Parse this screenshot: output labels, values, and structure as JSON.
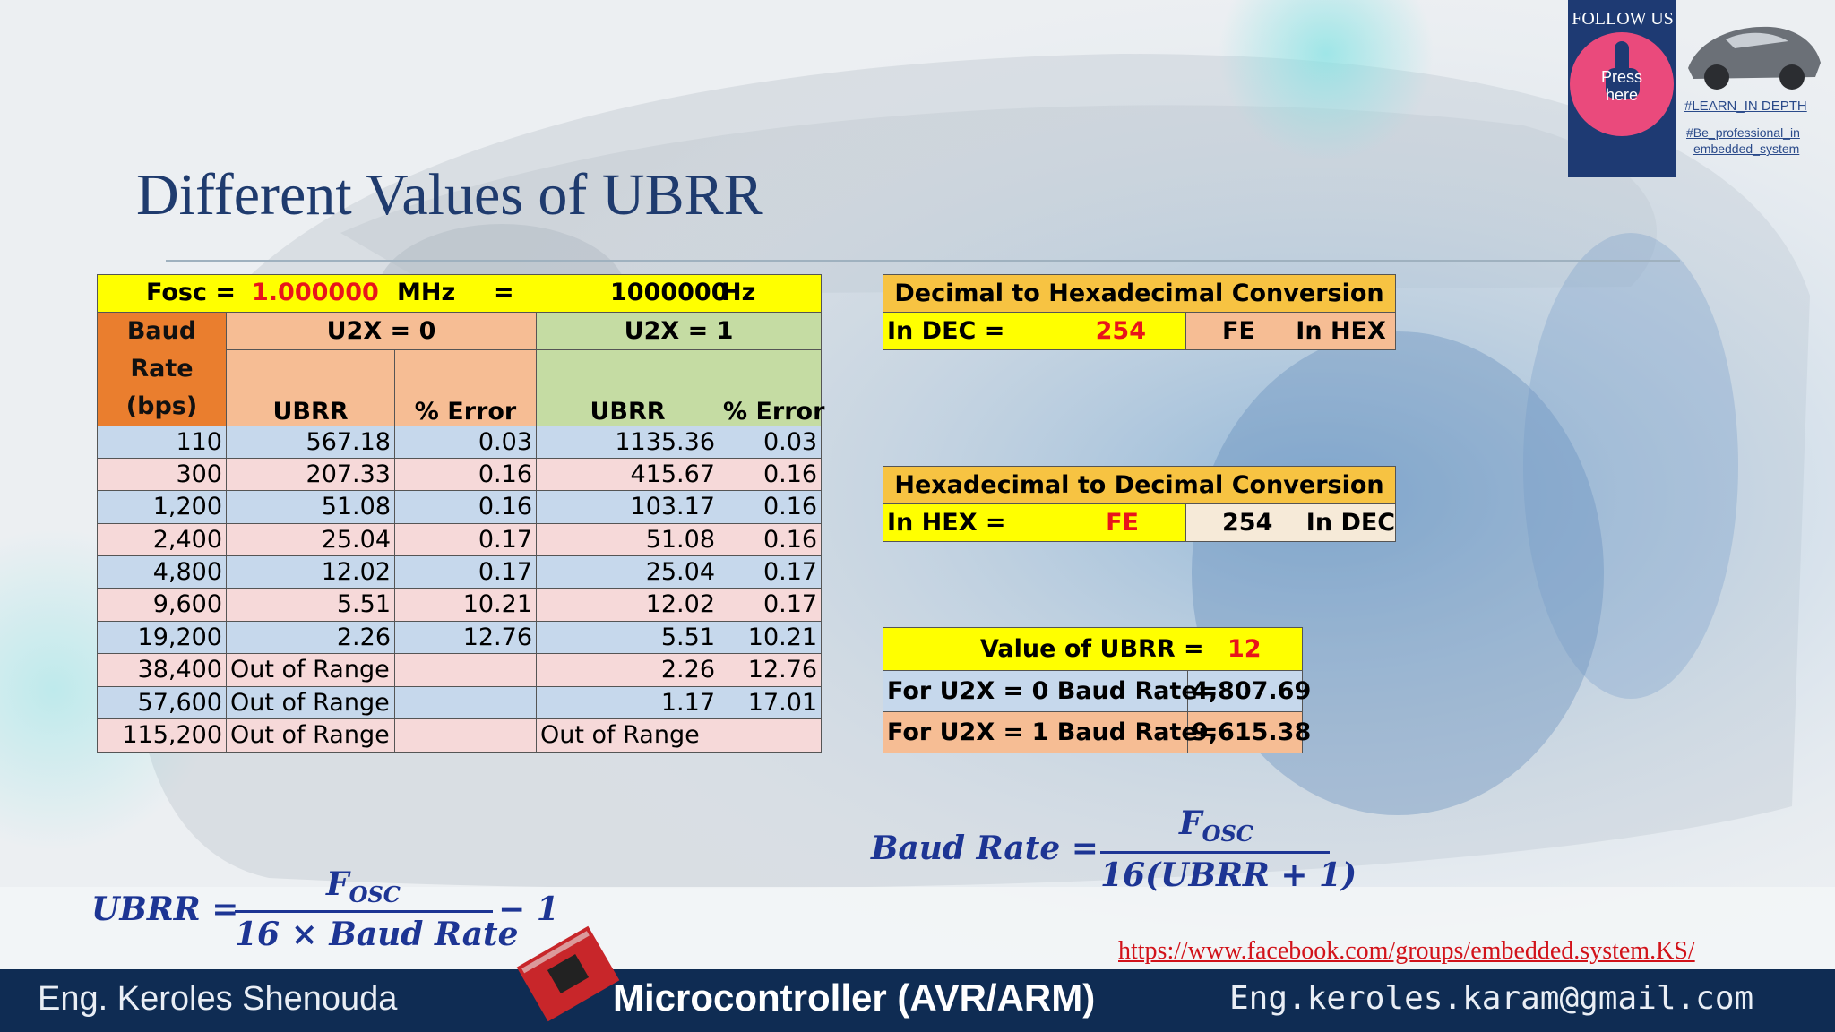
{
  "slide": {
    "title": "Different Values of UBRR"
  },
  "fosc": {
    "label": "Fosc =",
    "value": "1.000000",
    "unit_mhz": "MHz",
    "eq": "=",
    "hz_value": "1000000",
    "unit_hz": "Hz"
  },
  "table_headers": {
    "baud": "Baud Rate (bps)",
    "u2x0": "U2X = 0",
    "u2x1": "U2X = 1",
    "ubrr": "UBRR",
    "error": "% Error"
  },
  "rows": [
    {
      "baud": "110",
      "ubrr0": "567.18",
      "err0": "0.03",
      "ubrr1": "1135.36",
      "err1": "0.03"
    },
    {
      "baud": "300",
      "ubrr0": "207.33",
      "err0": "0.16",
      "ubrr1": "415.67",
      "err1": "0.16"
    },
    {
      "baud": "1,200",
      "ubrr0": "51.08",
      "err0": "0.16",
      "ubrr1": "103.17",
      "err1": "0.16"
    },
    {
      "baud": "2,400",
      "ubrr0": "25.04",
      "err0": "0.17",
      "ubrr1": "51.08",
      "err1": "0.16"
    },
    {
      "baud": "4,800",
      "ubrr0": "12.02",
      "err0": "0.17",
      "ubrr1": "25.04",
      "err1": "0.17"
    },
    {
      "baud": "9,600",
      "ubrr0": "5.51",
      "err0": "10.21",
      "ubrr1": "12.02",
      "err1": "0.17"
    },
    {
      "baud": "19,200",
      "ubrr0": "2.26",
      "err0": "12.76",
      "ubrr1": "5.51",
      "err1": "10.21"
    },
    {
      "baud": "38,400",
      "ubrr0": "Out of Range",
      "err0": "",
      "ubrr1": "2.26",
      "err1": "12.76"
    },
    {
      "baud": "57,600",
      "ubrr0": "Out of Range",
      "err0": "",
      "ubrr1": "1.17",
      "err1": "17.01"
    },
    {
      "baud": "115,200",
      "ubrr0": "Out of Range",
      "err0": "",
      "ubrr1": "Out of Range",
      "err1": ""
    }
  ],
  "dec_to_hex": {
    "title": "Decimal to Hexadecimal Conversion",
    "in_label": "In DEC =",
    "in_value": "254",
    "out_value": "FE",
    "out_label": "In HEX"
  },
  "hex_to_dec": {
    "title": "Hexadecimal to Decimal Conversion",
    "in_label": "In HEX =",
    "in_value": "FE",
    "out_value": "254",
    "out_label": "In DEC"
  },
  "ubrr_value": {
    "label": "Value of UBRR =",
    "value": "12",
    "u2x0_label": "For U2X = 0 Baud Rate=",
    "u2x0_value": "4,807.69",
    "u2x1_label": "For U2X = 1 Baud Rate=",
    "u2x1_value": "9,615.38"
  },
  "formulas": {
    "baud_lhs": "Baud Rate =",
    "baud_num": "F",
    "baud_num_sub": "OSC",
    "baud_den": "16(UBRR + 1)",
    "ubrr_lhs": "UBRR =",
    "ubrr_num": "F",
    "ubrr_num_sub": "OSC",
    "ubrr_den": "16 × Baud Rate",
    "ubrr_tail": "− 1"
  },
  "footer": {
    "author": "Eng. Keroles Shenouda",
    "course": "Microcontroller (AVR/ARM)",
    "email": "Eng.keroles.karam@gmail.com",
    "link": "https://www.facebook.com/groups/embedded.system.KS/"
  },
  "follow": {
    "title": "FOLLOW US",
    "press": "Press",
    "here": "here",
    "tag1": "#LEARN_IN DEPTH",
    "tag2": "#Be_professional_in",
    "tag3": "embedded_system"
  },
  "colors": {
    "title": "#1f3b6e",
    "yellow": "#ffff00",
    "orange": "#ea7e2e",
    "light_orange": "#f6bd94",
    "light_green": "#c5dca3",
    "row_blue": "#c6d8ec",
    "row_pink": "#f6d9d9",
    "formula": "#1d3594",
    "footer": "#0f2c53"
  }
}
